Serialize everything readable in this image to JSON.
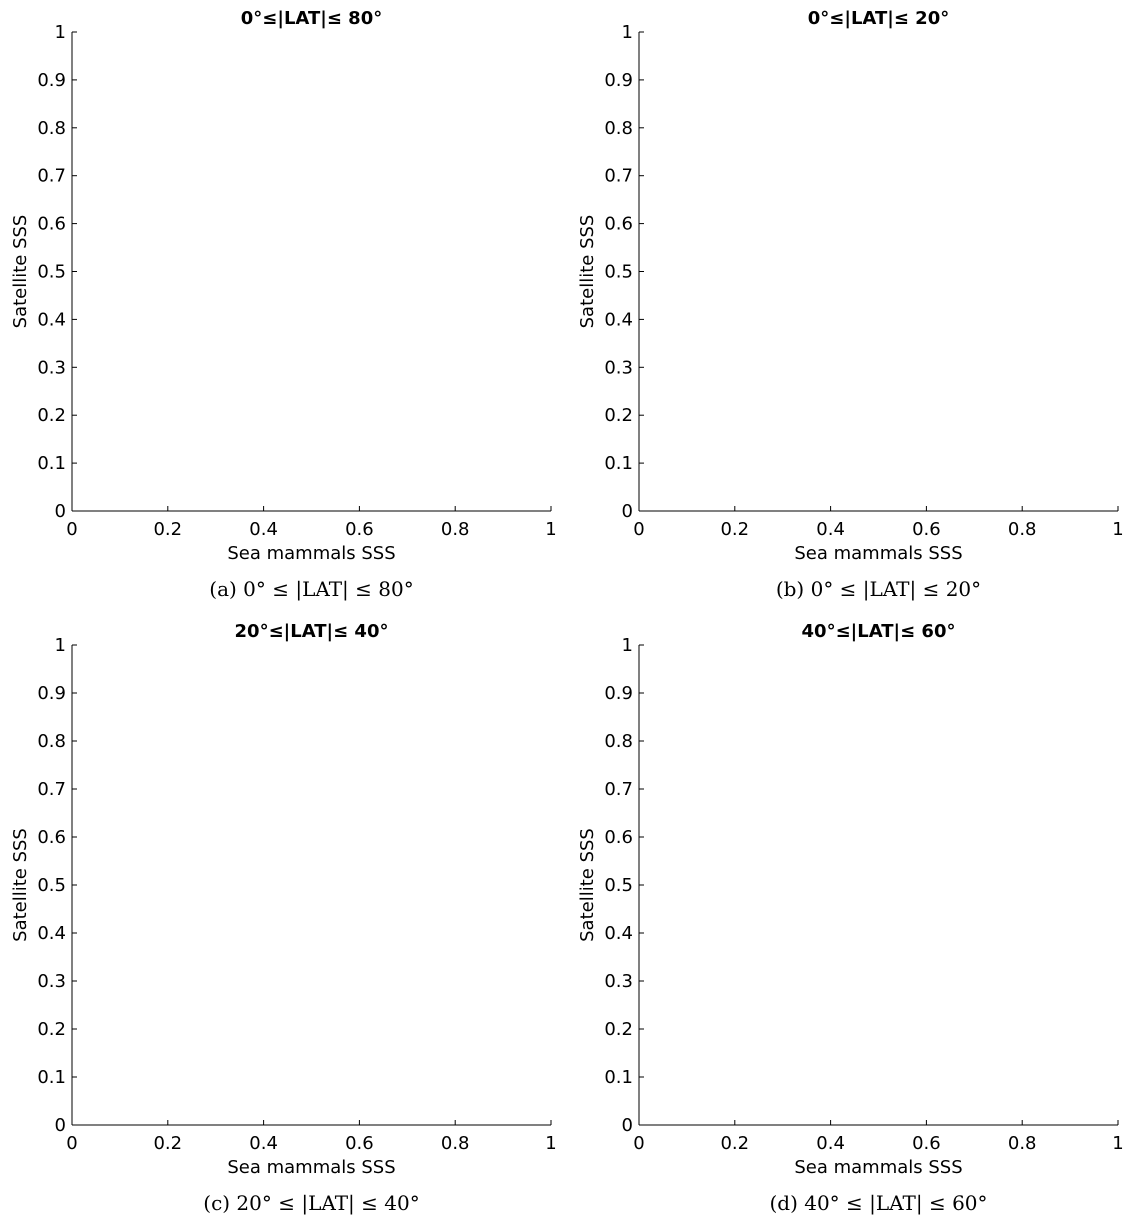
{
  "chart_data": [
    {
      "type": "scatter",
      "title": "0°≤|LAT|≤ 80°",
      "caption": "(a) 0° ≤ |LAT| ≤ 80°",
      "xlabel": "Sea mammals SSS",
      "ylabel": "Satellite SSS",
      "xlim": [
        0,
        1
      ],
      "ylim": [
        0,
        1
      ],
      "xticks": [
        "0",
        "0.2",
        "0.4",
        "0.6",
        "0.8",
        "1"
      ],
      "yticks": [
        "0",
        "0.1",
        "0.2",
        "0.3",
        "0.4",
        "0.5",
        "0.6",
        "0.7",
        "0.8",
        "0.9",
        "1"
      ],
      "grid": false,
      "series": []
    },
    {
      "type": "scatter",
      "title": "0°≤|LAT|≤ 20°",
      "caption": "(b) 0° ≤ |LAT| ≤ 20°",
      "xlabel": "Sea mammals SSS",
      "ylabel": "Satellite SSS",
      "xlim": [
        0,
        1
      ],
      "ylim": [
        0,
        1
      ],
      "xticks": [
        "0",
        "0.2",
        "0.4",
        "0.6",
        "0.8",
        "1"
      ],
      "yticks": [
        "0",
        "0.1",
        "0.2",
        "0.3",
        "0.4",
        "0.5",
        "0.6",
        "0.7",
        "0.8",
        "0.9",
        "1"
      ],
      "grid": false,
      "series": []
    },
    {
      "type": "scatter",
      "title": "20°≤|LAT|≤ 40°",
      "caption": "(c) 20° ≤ |LAT| ≤ 40°",
      "xlabel": "Sea mammals SSS",
      "ylabel": "Satellite SSS",
      "xlim": [
        0,
        1
      ],
      "ylim": [
        0,
        1
      ],
      "xticks": [
        "0",
        "0.2",
        "0.4",
        "0.6",
        "0.8",
        "1"
      ],
      "yticks": [
        "0",
        "0.1",
        "0.2",
        "0.3",
        "0.4",
        "0.5",
        "0.6",
        "0.7",
        "0.8",
        "0.9",
        "1"
      ],
      "grid": false,
      "series": []
    },
    {
      "type": "scatter",
      "title": "40°≤|LAT|≤ 60°",
      "caption": "(d) 40° ≤ |LAT| ≤ 60°",
      "xlabel": "Sea mammals SSS",
      "ylabel": "Satellite SSS",
      "xlim": [
        0,
        1
      ],
      "ylim": [
        0,
        1
      ],
      "xticks": [
        "0",
        "0.2",
        "0.4",
        "0.6",
        "0.8",
        "1"
      ],
      "yticks": [
        "0",
        "0.1",
        "0.2",
        "0.3",
        "0.4",
        "0.5",
        "0.6",
        "0.7",
        "0.8",
        "0.9",
        "1"
      ],
      "grid": false,
      "series": []
    }
  ]
}
